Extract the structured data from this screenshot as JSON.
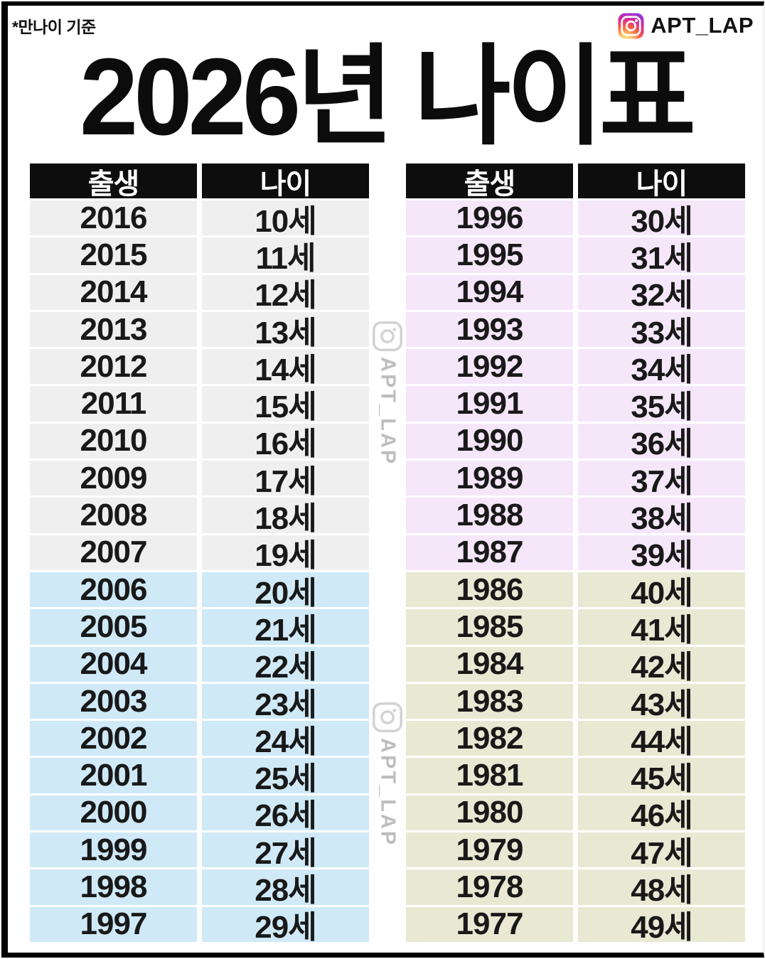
{
  "page": {
    "note": "*만나이 기준",
    "handle": "APT_LAP",
    "title": "2026년 나이표"
  },
  "watermark": {
    "handle": "APT_LAP"
  },
  "columns": {
    "birth": "출생",
    "age": "나이"
  },
  "colors": {
    "gray": "#f0efef",
    "blue": "#cfe9f7",
    "purple": "#f5e7f9",
    "olive": "#e9e8d3",
    "header_bg": "#0d0d0d",
    "header_text": "#ffffff"
  },
  "tables": [
    {
      "rows": [
        {
          "year": "2016",
          "age": "10세",
          "color": "gray"
        },
        {
          "year": "2015",
          "age": "11세",
          "color": "gray"
        },
        {
          "year": "2014",
          "age": "12세",
          "color": "gray"
        },
        {
          "year": "2013",
          "age": "13세",
          "color": "gray"
        },
        {
          "year": "2012",
          "age": "14세",
          "color": "gray"
        },
        {
          "year": "2011",
          "age": "15세",
          "color": "gray"
        },
        {
          "year": "2010",
          "age": "16세",
          "color": "gray"
        },
        {
          "year": "2009",
          "age": "17세",
          "color": "gray"
        },
        {
          "year": "2008",
          "age": "18세",
          "color": "gray"
        },
        {
          "year": "2007",
          "age": "19세",
          "color": "gray"
        },
        {
          "year": "2006",
          "age": "20세",
          "color": "blue"
        },
        {
          "year": "2005",
          "age": "21세",
          "color": "blue"
        },
        {
          "year": "2004",
          "age": "22세",
          "color": "blue"
        },
        {
          "year": "2003",
          "age": "23세",
          "color": "blue"
        },
        {
          "year": "2002",
          "age": "24세",
          "color": "blue"
        },
        {
          "year": "2001",
          "age": "25세",
          "color": "blue"
        },
        {
          "year": "2000",
          "age": "26세",
          "color": "blue"
        },
        {
          "year": "1999",
          "age": "27세",
          "color": "blue"
        },
        {
          "year": "1998",
          "age": "28세",
          "color": "blue"
        },
        {
          "year": "1997",
          "age": "29세",
          "color": "blue"
        }
      ]
    },
    {
      "rows": [
        {
          "year": "1996",
          "age": "30세",
          "color": "purple"
        },
        {
          "year": "1995",
          "age": "31세",
          "color": "purple"
        },
        {
          "year": "1994",
          "age": "32세",
          "color": "purple"
        },
        {
          "year": "1993",
          "age": "33세",
          "color": "purple"
        },
        {
          "year": "1992",
          "age": "34세",
          "color": "purple"
        },
        {
          "year": "1991",
          "age": "35세",
          "color": "purple"
        },
        {
          "year": "1990",
          "age": "36세",
          "color": "purple"
        },
        {
          "year": "1989",
          "age": "37세",
          "color": "purple"
        },
        {
          "year": "1988",
          "age": "38세",
          "color": "purple"
        },
        {
          "year": "1987",
          "age": "39세",
          "color": "purple"
        },
        {
          "year": "1986",
          "age": "40세",
          "color": "olive"
        },
        {
          "year": "1985",
          "age": "41세",
          "color": "olive"
        },
        {
          "year": "1984",
          "age": "42세",
          "color": "olive"
        },
        {
          "year": "1983",
          "age": "43세",
          "color": "olive"
        },
        {
          "year": "1982",
          "age": "44세",
          "color": "olive"
        },
        {
          "year": "1981",
          "age": "45세",
          "color": "olive"
        },
        {
          "year": "1980",
          "age": "46세",
          "color": "olive"
        },
        {
          "year": "1979",
          "age": "47세",
          "color": "olive"
        },
        {
          "year": "1978",
          "age": "48세",
          "color": "olive"
        },
        {
          "year": "1977",
          "age": "49세",
          "color": "olive"
        }
      ]
    }
  ],
  "chart_data": [
    {
      "type": "table",
      "title": "2026년 나이표 (left table)",
      "columns": [
        "출생",
        "나이"
      ],
      "rows": [
        [
          "2016",
          "10세"
        ],
        [
          "2015",
          "11세"
        ],
        [
          "2014",
          "12세"
        ],
        [
          "2013",
          "13세"
        ],
        [
          "2012",
          "14세"
        ],
        [
          "2011",
          "15세"
        ],
        [
          "2010",
          "16세"
        ],
        [
          "2009",
          "17세"
        ],
        [
          "2008",
          "18세"
        ],
        [
          "2007",
          "19세"
        ],
        [
          "2006",
          "20세"
        ],
        [
          "2005",
          "21세"
        ],
        [
          "2004",
          "22세"
        ],
        [
          "2003",
          "23세"
        ],
        [
          "2002",
          "24세"
        ],
        [
          "2001",
          "25세"
        ],
        [
          "2000",
          "26세"
        ],
        [
          "1999",
          "27세"
        ],
        [
          "1998",
          "28세"
        ],
        [
          "1997",
          "29세"
        ]
      ]
    },
    {
      "type": "table",
      "title": "2026년 나이표 (right table)",
      "columns": [
        "출생",
        "나이"
      ],
      "rows": [
        [
          "1996",
          "30세"
        ],
        [
          "1995",
          "31세"
        ],
        [
          "1994",
          "32세"
        ],
        [
          "1993",
          "33세"
        ],
        [
          "1992",
          "34세"
        ],
        [
          "1991",
          "35세"
        ],
        [
          "1990",
          "36세"
        ],
        [
          "1989",
          "37세"
        ],
        [
          "1988",
          "38세"
        ],
        [
          "1987",
          "39세"
        ],
        [
          "1986",
          "40세"
        ],
        [
          "1985",
          "41세"
        ],
        [
          "1984",
          "42세"
        ],
        [
          "1983",
          "43세"
        ],
        [
          "1982",
          "44세"
        ],
        [
          "1981",
          "45세"
        ],
        [
          "1980",
          "46세"
        ],
        [
          "1979",
          "47세"
        ],
        [
          "1978",
          "48세"
        ],
        [
          "1977",
          "49세"
        ]
      ]
    }
  ]
}
